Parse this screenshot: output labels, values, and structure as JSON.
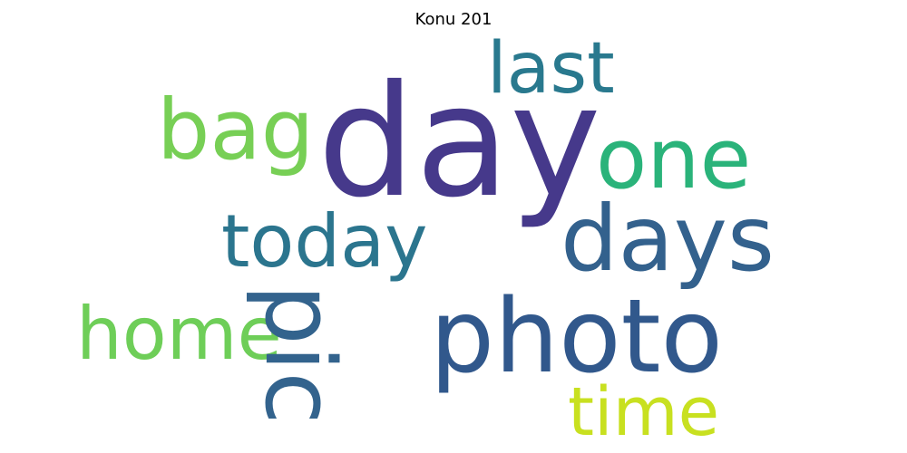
{
  "title": "Konu 201",
  "words": {
    "day": {
      "text": "day",
      "color": "#46398b"
    },
    "photo": {
      "text": "photo",
      "color": "#31588c"
    },
    "days": {
      "text": "days",
      "color": "#33618d"
    },
    "today": {
      "text": "today",
      "color": "#2b758e"
    },
    "one": {
      "text": "one",
      "color": "#2ab37a"
    },
    "bag": {
      "text": "bag",
      "color": "#77cf55"
    },
    "last": {
      "text": "last",
      "color": "#29798e"
    },
    "home": {
      "text": "home",
      "color": "#6ece58"
    },
    "time": {
      "text": "time",
      "color": "#c8e020"
    },
    "pic": {
      "text": "pic",
      "color": "#33638d"
    }
  }
}
